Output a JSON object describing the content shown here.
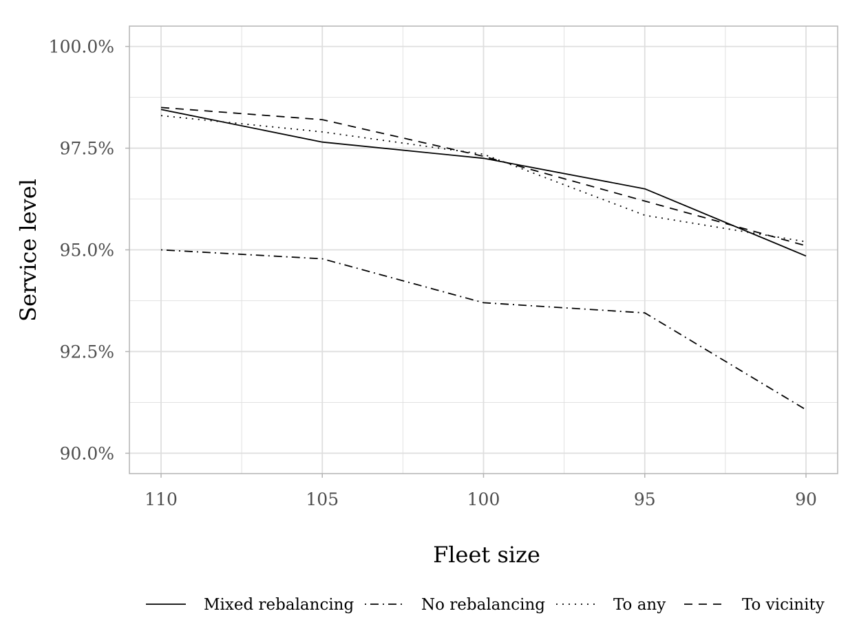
{
  "chart_data": {
    "type": "line",
    "title": "",
    "xlabel": "Fleet size",
    "ylabel": "Service level",
    "x": [
      110,
      105,
      100,
      95,
      90
    ],
    "x_tick_labels": [
      "110",
      "105",
      "100",
      "95",
      "90"
    ],
    "x_reversed": true,
    "ylim": [
      89.5,
      100.5
    ],
    "y_ticks": [
      90.0,
      92.5,
      95.0,
      97.5,
      100.0
    ],
    "y_tick_labels": [
      "90.0%",
      "92.5%",
      "95.0%",
      "97.5%",
      "100.0%"
    ],
    "grid": true,
    "legend_position": "bottom",
    "series": [
      {
        "name": "Mixed rebalancing",
        "dash": "solid",
        "values": [
          98.45,
          97.65,
          97.25,
          96.5,
          94.85
        ]
      },
      {
        "name": "No rebalancing",
        "dash": "dotdash",
        "values": [
          95.0,
          94.78,
          93.7,
          93.45,
          91.07
        ]
      },
      {
        "name": "To any",
        "dash": "dotted",
        "values": [
          98.3,
          97.9,
          97.35,
          95.85,
          95.2
        ]
      },
      {
        "name": "To vicinity",
        "dash": "dashed",
        "values": [
          98.5,
          98.2,
          97.3,
          96.2,
          95.1
        ]
      }
    ],
    "colors": {
      "line": "#000000",
      "grid": "#dedede",
      "panel_border": "#b3b3b3",
      "tick_text": "#4d4d4d"
    }
  }
}
